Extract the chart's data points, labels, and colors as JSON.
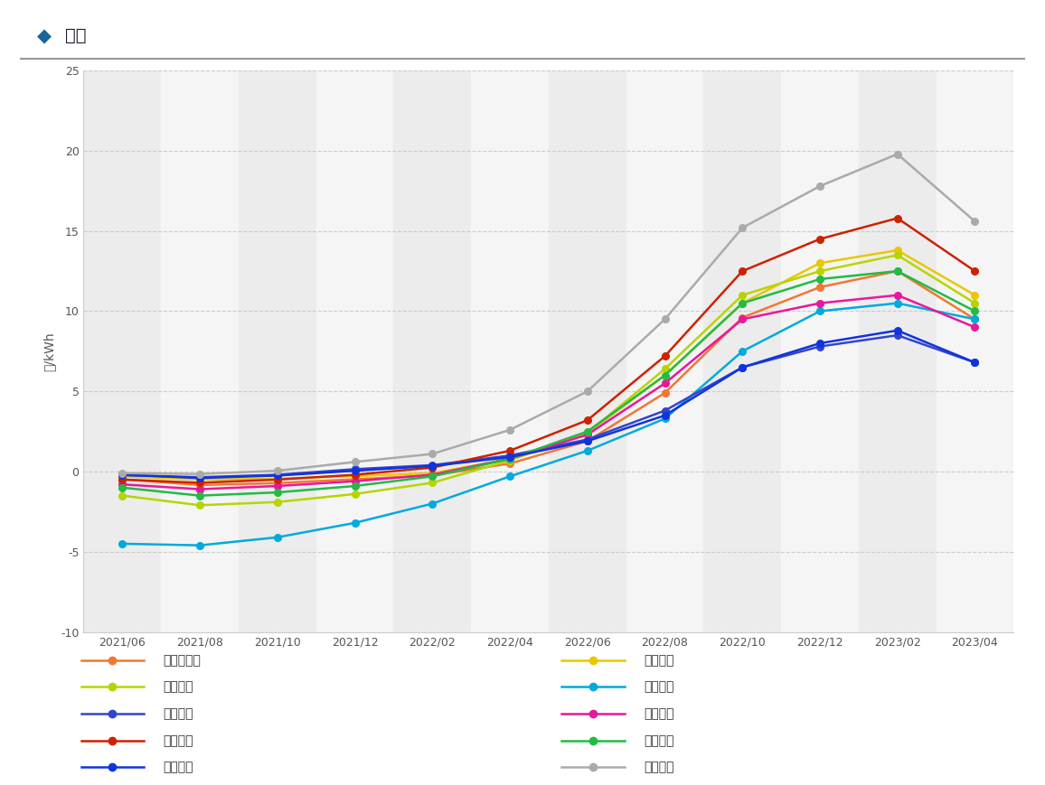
{
  "title_diamond": "◆",
  "title_text": "低圧",
  "ylabel": "円/kWh",
  "x_labels": [
    "2021/06",
    "2021/08",
    "2021/10",
    "2021/12",
    "2022/02",
    "2022/04",
    "2022/06",
    "2022/08",
    "2022/10",
    "2022/12",
    "2023/02",
    "2023/04"
  ],
  "ylim": [
    -10,
    25
  ],
  "yticks": [
    -10,
    -5,
    0,
    5,
    10,
    15,
    20,
    25
  ],
  "series": [
    {
      "name": "北海道電力",
      "color": "#f07832",
      "data": [
        -0.48,
        -0.84,
        -0.72,
        -0.48,
        -0.24,
        0.5,
        1.9,
        4.9,
        9.6,
        11.5,
        12.5,
        9.5
      ]
    },
    {
      "name": "東北電力",
      "color": "#e8c800",
      "data": [
        -0.3,
        -0.5,
        -0.45,
        -0.28,
        -0.1,
        0.8,
        2.4,
        6.0,
        10.5,
        13.0,
        13.8,
        11.0
      ]
    },
    {
      "name": "東京電力",
      "color": "#b8d400",
      "data": [
        -1.5,
        -2.1,
        -1.9,
        -1.4,
        -0.7,
        0.7,
        2.4,
        6.4,
        11.0,
        12.5,
        13.5,
        10.5
      ]
    },
    {
      "name": "中部電力",
      "color": "#00aadd",
      "data": [
        -4.5,
        -4.6,
        -4.1,
        -3.2,
        -2.0,
        -0.3,
        1.3,
        3.3,
        7.5,
        10.0,
        10.5,
        9.5
      ]
    },
    {
      "name": "北陸電力",
      "color": "#3344cc",
      "data": [
        -0.22,
        -0.35,
        -0.2,
        0.15,
        0.4,
        1.0,
        2.0,
        3.8,
        6.5,
        7.8,
        8.5,
        6.8
      ]
    },
    {
      "name": "関西電力",
      "color": "#e8189c",
      "data": [
        -0.8,
        -1.1,
        -0.9,
        -0.6,
        -0.2,
        0.8,
        2.3,
        5.5,
        9.5,
        10.5,
        11.0,
        9.0
      ]
    },
    {
      "name": "中国電力",
      "color": "#cc2200",
      "data": [
        -0.5,
        -0.7,
        -0.5,
        -0.2,
        0.25,
        1.3,
        3.2,
        7.2,
        12.5,
        14.5,
        15.8,
        12.5
      ]
    },
    {
      "name": "四国電力",
      "color": "#22bb44",
      "data": [
        -1.0,
        -1.5,
        -1.3,
        -0.9,
        -0.3,
        0.8,
        2.5,
        6.0,
        10.5,
        12.0,
        12.5,
        10.0
      ]
    },
    {
      "name": "九州電力",
      "color": "#1133dd",
      "data": [
        -0.2,
        -0.4,
        -0.25,
        0.05,
        0.35,
        0.9,
        1.9,
        3.5,
        6.5,
        8.0,
        8.8,
        6.8
      ]
    },
    {
      "name": "沖縄電力",
      "color": "#aaaaaa",
      "data": [
        -0.1,
        -0.15,
        0.05,
        0.6,
        1.1,
        2.6,
        5.0,
        9.5,
        15.2,
        17.8,
        19.8,
        15.6
      ]
    }
  ],
  "legend_col1": [
    "北海道電力",
    "東京電力",
    "北陸電力",
    "中国電力",
    "九州電力"
  ],
  "legend_col2": [
    "東北電力",
    "中部電力",
    "関西電力",
    "四国電力",
    "沖縄電力"
  ],
  "background_color": "#ffffff",
  "plot_bg_even": "#ececec",
  "plot_bg_odd": "#f5f5f5",
  "grid_color": "#cccccc",
  "title_color": "#1a1a2e",
  "diamond_color": "#1a6699",
  "separator_color": "#999999",
  "tick_label_color": "#555555",
  "legend_text_color": "#333333"
}
